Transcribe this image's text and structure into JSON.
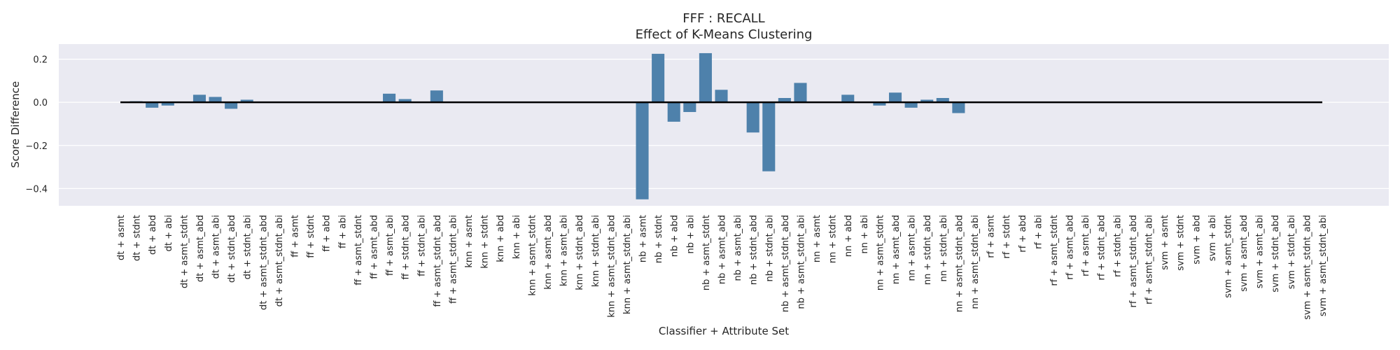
{
  "chart_data": {
    "type": "bar",
    "title": "FFF : RECALL",
    "subtitle": "Effect of K-Means Clustering",
    "xlabel": "Classifier + Attribute Set",
    "ylabel": "Score Difference",
    "ylim": [
      -0.48,
      0.27
    ],
    "yticks": [
      0.2,
      0.0,
      -0.2,
      -0.4
    ],
    "ytick_labels": [
      "0.2",
      "0.0",
      "−0.2",
      "−0.4"
    ],
    "grid": true,
    "background_color": "#eaeaf2",
    "bar_color": "#4e81ab",
    "zero_line_color": "#000000",
    "categories": [
      "dt + asmt",
      "dt + stdnt",
      "dt + abd",
      "dt + abi",
      "dt + asmt_stdnt",
      "dt + asmt_abd",
      "dt + asmt_abi",
      "dt + stdnt_abd",
      "dt + stdnt_abi",
      "dt + asmt_stdnt_abd",
      "dt + asmt_stdnt_abi",
      "ff + asmt",
      "ff + stdnt",
      "ff + abd",
      "ff + abi",
      "ff + asmt_stdnt",
      "ff + asmt_abd",
      "ff + asmt_abi",
      "ff + stdnt_abd",
      "ff + stdnt_abi",
      "ff + asmt_stdnt_abd",
      "ff + asmt_stdnt_abi",
      "knn + asmt",
      "knn + stdnt",
      "knn + abd",
      "knn + abi",
      "knn + asmt_stdnt",
      "knn + asmt_abd",
      "knn + asmt_abi",
      "knn + stdnt_abd",
      "knn + stdnt_abi",
      "knn + asmt_stdnt_abd",
      "knn + asmt_stdnt_abi",
      "nb + asmt",
      "nb + stdnt",
      "nb + abd",
      "nb + abi",
      "nb + asmt_stdnt",
      "nb + asmt_abd",
      "nb + asmt_abi",
      "nb + stdnt_abd",
      "nb + stdnt_abi",
      "nb + asmt_stdnt_abd",
      "nb + asmt_stdnt_abi",
      "nn + asmt",
      "nn + stdnt",
      "nn + abd",
      "nn + abi",
      "nn + asmt_stdnt",
      "nn + asmt_abd",
      "nn + asmt_abi",
      "nn + stdnt_abd",
      "nn + stdnt_abi",
      "nn + asmt_stdnt_abd",
      "nn + asmt_stdnt_abi",
      "rf + asmt",
      "rf + stdnt",
      "rf + abd",
      "rf + abi",
      "rf + asmt_stdnt",
      "rf + asmt_abd",
      "rf + asmt_abi",
      "rf + stdnt_abd",
      "rf + stdnt_abi",
      "rf + asmt_stdnt_abd",
      "rf + asmt_stdnt_abi",
      "svm + asmt",
      "svm + stdnt",
      "svm + abd",
      "svm + abi",
      "svm + asmt_stdnt",
      "svm + asmt_abd",
      "svm + asmt_abi",
      "svm + stdnt_abd",
      "svm + stdnt_abi",
      "svm + asmt_stdnt_abd",
      "svm + asmt_stdnt_abi"
    ],
    "values": [
      0,
      0.005,
      -0.025,
      -0.015,
      0,
      0.035,
      0.025,
      -0.03,
      0.012,
      0,
      0,
      0,
      0,
      0,
      0,
      0,
      0,
      0.04,
      0.015,
      0,
      0.055,
      0,
      0,
      0,
      0,
      0,
      0,
      0,
      0,
      0,
      0,
      0,
      0,
      -0.45,
      0.225,
      -0.09,
      -0.045,
      0.228,
      0.058,
      0,
      -0.14,
      -0.32,
      0.02,
      0.09,
      0,
      0,
      0.035,
      0,
      -0.015,
      0.045,
      -0.025,
      0.012,
      0.02,
      -0.05,
      0,
      0,
      0,
      0,
      0,
      0,
      0,
      0,
      0,
      0,
      0,
      0,
      0,
      0,
      0,
      0,
      0,
      0,
      0,
      0,
      0,
      0,
      0
    ]
  }
}
